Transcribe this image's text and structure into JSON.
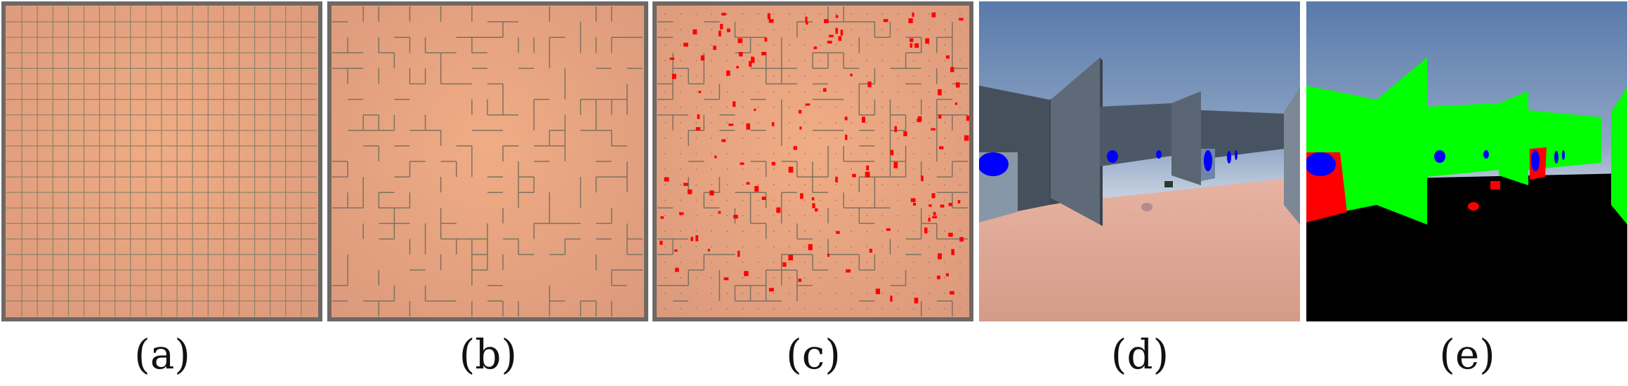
{
  "figure": {
    "panels": [
      {
        "label": "(a)",
        "content": "empty-grid-maze-top-view"
      },
      {
        "label": "(b)",
        "content": "maze-walls-top-view"
      },
      {
        "label": "(c)",
        "content": "maze-with-red-markers-top-view"
      },
      {
        "label": "(d)",
        "content": "first-person-rgb-view"
      },
      {
        "label": "(e)",
        "content": "first-person-segmentation-view"
      }
    ]
  },
  "colors": {
    "floor": "#f0ac84",
    "floor_edge": "#dc9a7d",
    "maze_border": "#6e6864",
    "grid_line": "#8a8266",
    "wall_line": "#7a7260",
    "marker_red": "#ff0000",
    "sky_top": "#5d7aa9",
    "sky_bottom": "#b9c8de",
    "wall_gray": "#515c6a",
    "ground_pink": "#d9a08c",
    "goal_blue": "#0000ff",
    "seg_wall_green": "#00ff00",
    "seg_floor_black": "#000000"
  }
}
